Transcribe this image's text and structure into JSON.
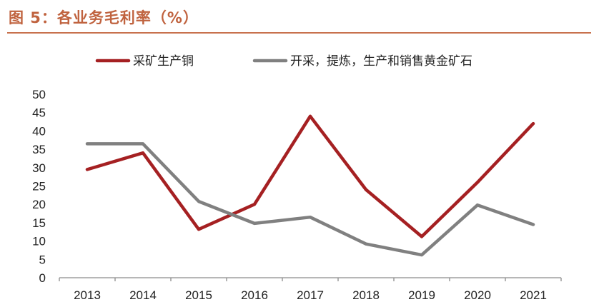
{
  "header": {
    "title": "图 5：各业务毛利率（%）"
  },
  "chart_data": {
    "type": "line",
    "title": "图 5：各业务毛利率（%）",
    "xlabel": "",
    "ylabel": "",
    "categories": [
      "2013",
      "2014",
      "2015",
      "2016",
      "2017",
      "2018",
      "2019",
      "2020",
      "2021"
    ],
    "yticks": [
      0,
      5,
      10,
      15,
      20,
      25,
      30,
      35,
      40,
      45,
      50
    ],
    "ylim": [
      0,
      50
    ],
    "grid": false,
    "legend_position": "top",
    "series": [
      {
        "name": "采矿生产铜",
        "color": "#a52022",
        "values": [
          29.5,
          34,
          13.2,
          20,
          44,
          24,
          11.2,
          26,
          42
        ]
      },
      {
        "name": "开采，提炼，生产和销售黄金矿石",
        "color": "#808080",
        "values": [
          36.5,
          36.5,
          20.8,
          14.8,
          16.5,
          9.2,
          6.2,
          19.8,
          14.5
        ]
      }
    ]
  }
}
